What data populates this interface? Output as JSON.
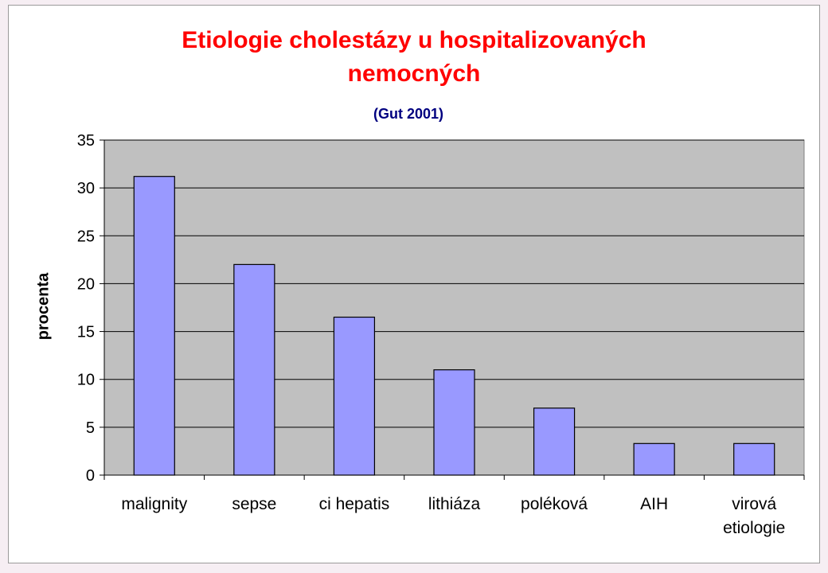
{
  "chart_data": {
    "type": "bar",
    "title": [
      "Etiologie cholestázy u hospitalizovaných",
      "nemocných"
    ],
    "subtitle": "(Gut 2001)",
    "ylabel": "procenta",
    "xlabel": "",
    "ylim": [
      0,
      35
    ],
    "yticks": [
      0,
      5,
      10,
      15,
      20,
      25,
      30,
      35
    ],
    "grid": true,
    "categories": [
      [
        "malignity"
      ],
      [
        "sepse"
      ],
      [
        "ci hepatis"
      ],
      [
        "lithiáza"
      ],
      [
        "poléková"
      ],
      [
        "AIH"
      ],
      [
        "virová",
        "etiologie"
      ]
    ],
    "values": [
      31.2,
      22,
      16.5,
      11,
      7,
      3.3,
      3.3
    ],
    "colors": {
      "bar": "#9999ff",
      "plot_background": "#c0c0c0",
      "title": "#ff0000",
      "subtitle": "#000080"
    }
  }
}
